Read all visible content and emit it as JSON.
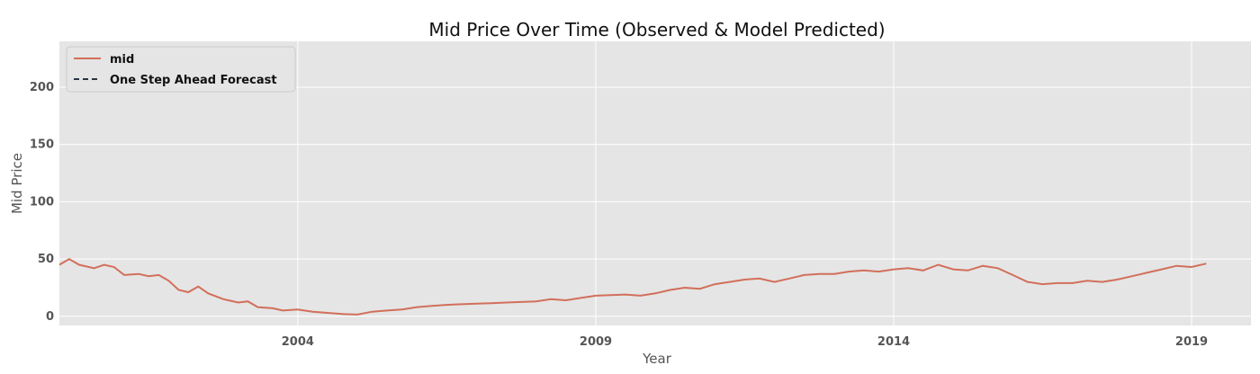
{
  "chart_data": {
    "type": "line",
    "title": "Mid Price Over Time (Observed & Model Predicted)",
    "xlabel": "Year",
    "ylabel": "Mid Price",
    "x_range": [
      "2000-01-01",
      "2019-12-31"
    ],
    "ylim": [
      -8,
      240
    ],
    "x_ticks": [
      "2004",
      "2009",
      "2014",
      "2019"
    ],
    "y_ticks": [
      0,
      50,
      100,
      150,
      200
    ],
    "grid": true,
    "legend": "top-left",
    "background_color": "#e5e5e5",
    "series": [
      {
        "name": "mid",
        "style": "solid",
        "color": "#d26f5b",
        "points": [
          [
            "2000-01-01",
            45
          ],
          [
            "2000-03-01",
            50
          ],
          [
            "2000-05-01",
            45
          ],
          [
            "2000-08-01",
            42
          ],
          [
            "2000-10-01",
            45
          ],
          [
            "2000-12-01",
            43
          ],
          [
            "2001-02-01",
            36
          ],
          [
            "2001-05-01",
            37
          ],
          [
            "2001-07-01",
            35
          ],
          [
            "2001-09-01",
            36
          ],
          [
            "2001-11-01",
            31
          ],
          [
            "2002-01-01",
            23
          ],
          [
            "2002-03-01",
            21
          ],
          [
            "2002-05-01",
            26
          ],
          [
            "2002-07-01",
            20
          ],
          [
            "2002-10-01",
            15
          ],
          [
            "2003-01-01",
            12
          ],
          [
            "2003-03-01",
            13
          ],
          [
            "2003-05-01",
            8
          ],
          [
            "2003-08-01",
            7
          ],
          [
            "2003-10-01",
            5
          ],
          [
            "2004-01-01",
            6
          ],
          [
            "2004-04-01",
            4
          ],
          [
            "2004-07-01",
            3
          ],
          [
            "2004-10-01",
            2
          ],
          [
            "2005-01-01",
            1.5
          ],
          [
            "2005-04-01",
            4
          ],
          [
            "2005-07-01",
            5
          ],
          [
            "2005-10-01",
            6
          ],
          [
            "2006-01-01",
            8
          ],
          [
            "2006-04-01",
            9
          ],
          [
            "2006-07-01",
            10
          ],
          [
            "2006-10-01",
            10.5
          ],
          [
            "2007-01-01",
            11
          ],
          [
            "2007-04-01",
            11.5
          ],
          [
            "2007-07-01",
            12
          ],
          [
            "2007-10-01",
            12.5
          ],
          [
            "2008-01-01",
            13
          ],
          [
            "2008-04-01",
            15
          ],
          [
            "2008-07-01",
            14
          ],
          [
            "2008-10-01",
            16
          ],
          [
            "2009-01-01",
            18
          ],
          [
            "2009-04-01",
            18.5
          ],
          [
            "2009-07-01",
            19
          ],
          [
            "2009-10-01",
            18
          ],
          [
            "2010-01-01",
            20
          ],
          [
            "2010-04-01",
            23
          ],
          [
            "2010-07-01",
            25
          ],
          [
            "2010-10-01",
            24
          ],
          [
            "2011-01-01",
            28
          ],
          [
            "2011-04-01",
            30
          ],
          [
            "2011-07-01",
            32
          ],
          [
            "2011-10-01",
            33
          ],
          [
            "2012-01-01",
            30
          ],
          [
            "2012-04-01",
            33
          ],
          [
            "2012-07-01",
            36
          ],
          [
            "2012-10-01",
            37
          ],
          [
            "2013-01-01",
            37
          ],
          [
            "2013-04-01",
            39
          ],
          [
            "2013-07-01",
            40
          ],
          [
            "2013-10-01",
            39
          ],
          [
            "2014-01-01",
            41
          ],
          [
            "2014-04-01",
            42
          ],
          [
            "2014-07-01",
            40
          ],
          [
            "2014-10-01",
            45
          ],
          [
            "2015-01-01",
            41
          ],
          [
            "2015-04-01",
            40
          ],
          [
            "2015-07-01",
            44
          ],
          [
            "2015-10-01",
            42
          ],
          [
            "2016-01-01",
            36
          ],
          [
            "2016-04-01",
            30
          ],
          [
            "2016-07-01",
            28
          ],
          [
            "2016-10-01",
            29
          ],
          [
            "2017-01-01",
            29
          ],
          [
            "2017-04-01",
            31
          ],
          [
            "2017-07-01",
            30
          ],
          [
            "2017-10-01",
            32
          ],
          [
            "2018-01-01",
            35
          ],
          [
            "2018-04-01",
            38
          ],
          [
            "2018-07-01",
            41
          ],
          [
            "2018-10-01",
            44
          ],
          [
            "2019-01-01",
            43
          ],
          [
            "2019-04-01",
            46
          ]
        ]
      },
      {
        "name": "One Step Ahead Forecast",
        "style": "dashed",
        "color": "#2b3443",
        "points": []
      }
    ]
  }
}
